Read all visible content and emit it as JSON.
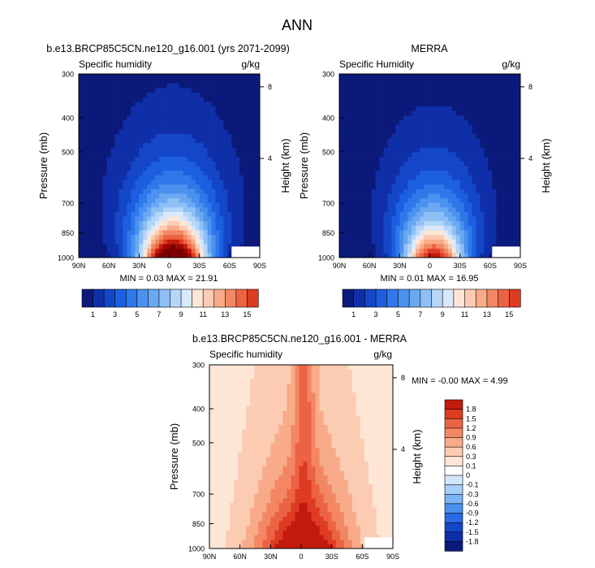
{
  "figure_title": "ANN",
  "colors": {
    "seq_palette": [
      "#0b1a7a",
      "#0f2fa8",
      "#1447c8",
      "#1c5fe0",
      "#2f78ea",
      "#4b91ef",
      "#6aa8f2",
      "#8fc0f5",
      "#b6d6f8",
      "#d9e9fb",
      "#fde6d6",
      "#fbcbb2",
      "#f8ab89",
      "#f38763",
      "#ec6344",
      "#dd3b22",
      "#c21a0d",
      "#9c0803",
      "#7a0000"
    ],
    "diff_palette": [
      "#0b1a7a",
      "#0f2fa8",
      "#1447c8",
      "#2a6ae4",
      "#4b91ef",
      "#7bb3f3",
      "#a8cef7",
      "#d2e6fb",
      "#ffffff",
      "#fde6d6",
      "#fbcbb2",
      "#f8ab89",
      "#f38763",
      "#ec6344",
      "#dd3b22",
      "#c21a0d",
      "#9c0803",
      "#7a0000"
    ]
  },
  "chart_data": [
    {
      "type": "heatmap",
      "title": "b.e13.BRCP85C5CN.ne120_g16.001 (yrs 2071-2099)",
      "left_label": "Specific humidity",
      "right_label": "g/kg",
      "xlabel": "",
      "ylabel": "Pressure (mb)",
      "y2label": "Height (km)",
      "x_ticks": [
        "90N",
        "60N",
        "30N",
        "0",
        "30S",
        "60S",
        "90S"
      ],
      "y_ticks": [
        "300",
        "400",
        "500",
        "700",
        "850",
        "1000"
      ],
      "y_tick_values": [
        300,
        400,
        500,
        700,
        850,
        1000
      ],
      "y2_ticks": [
        "8",
        "4"
      ],
      "ylim": [
        1000,
        300
      ],
      "xlim": [
        90,
        -90
      ],
      "min": 0.03,
      "max": 21.91,
      "stats_text": "MIN =  0.03  MAX = 21.91",
      "colorbar_labels": [
        "1",
        "3",
        "5",
        "7",
        "9",
        "11",
        "13",
        "15"
      ],
      "pattern": {
        "peak": 21.91,
        "surface_min": 0.6,
        "top_value": 0.4,
        "lat_width": 32
      }
    },
    {
      "type": "heatmap",
      "title": "MERRA",
      "left_label": "Specific Humidity",
      "right_label": "g/kg",
      "xlabel": "",
      "ylabel": "Pressure (mb)",
      "y2label": "Height (km)",
      "x_ticks": [
        "90N",
        "60N",
        "30N",
        "0",
        "30S",
        "60S",
        "90S"
      ],
      "y_ticks": [
        "300",
        "400",
        "500",
        "700",
        "850",
        "1000"
      ],
      "y_tick_values": [
        300,
        400,
        500,
        700,
        850,
        1000
      ],
      "y2_ticks": [
        "8",
        "4"
      ],
      "ylim": [
        1000,
        300
      ],
      "xlim": [
        90,
        -90
      ],
      "min": 0.01,
      "max": 16.95,
      "stats_text": "MIN =  0.01  MAX = 16.95",
      "colorbar_labels": [
        "1",
        "3",
        "5",
        "7",
        "9",
        "11",
        "13",
        "15"
      ],
      "pattern": {
        "peak": 16.95,
        "surface_min": 0.5,
        "top_value": 0.3,
        "lat_width": 30
      }
    },
    {
      "type": "heatmap",
      "title": "b.e13.BRCP85C5CN.ne120_g16.001 - MERRA",
      "left_label": "Specific humidity",
      "right_label": "g/kg",
      "xlabel": "",
      "ylabel": "Pressure (mb)",
      "y2label": "Height (km)",
      "x_ticks": [
        "90N",
        "60N",
        "30N",
        "0",
        "30S",
        "60S",
        "90S"
      ],
      "y_ticks": [
        "300",
        "400",
        "500",
        "700",
        "850",
        "1000"
      ],
      "y_tick_values": [
        300,
        400,
        500,
        700,
        850,
        1000
      ],
      "y2_ticks": [
        "8",
        "4"
      ],
      "ylim": [
        1000,
        300
      ],
      "xlim": [
        90,
        -90
      ],
      "min": -0.0,
      "max": 4.99,
      "stats_text": "MIN = -0.00  MAX =  4.99",
      "colorbar_labels": [
        "1.8",
        "1.5",
        "1.2",
        "0.9",
        "0.6",
        "0.3",
        "0.1",
        "0",
        "-0.1",
        "-0.3",
        "-0.6",
        "-0.9",
        "-1.2",
        "-1.5",
        "-1.8"
      ],
      "colorbar_levels": [
        -1.8,
        -1.5,
        -1.2,
        -0.9,
        -0.6,
        -0.3,
        -0.1,
        0,
        0.1,
        0.3,
        0.6,
        0.9,
        1.2,
        1.5,
        1.8
      ]
    }
  ]
}
